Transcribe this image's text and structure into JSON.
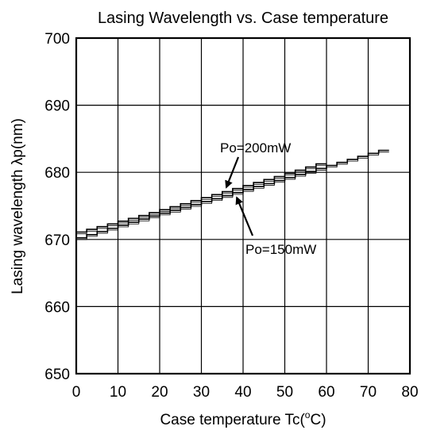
{
  "chart_data": {
    "type": "line",
    "title": "Lasing Wavelength vs. Case temperature",
    "xlabel": "Case temperature Tc(°C)",
    "xlabel_parts": {
      "before": "Case temperature Tc(",
      "sup": "o",
      "after": "C)"
    },
    "ylabel": "Lasing wavelength λp(nm)",
    "xlim": [
      0,
      80
    ],
    "ylim": [
      650,
      700
    ],
    "x_ticks": [
      "0",
      "10",
      "20",
      "30",
      "40",
      "50",
      "60",
      "70",
      "80"
    ],
    "y_ticks": [
      "650",
      "660",
      "670",
      "680",
      "690",
      "700"
    ],
    "grid": true,
    "series": [
      {
        "name": "Po=200mW",
        "x": [
          0,
          10,
          20,
          30,
          40,
          50,
          60
        ],
        "y": [
          670.9,
          672.5,
          674.2,
          676.0,
          677.8,
          679.6,
          681.5
        ]
      },
      {
        "name": "Po=150mW",
        "x": [
          0,
          10,
          20,
          30,
          40,
          50,
          60,
          70,
          75
        ],
        "y": [
          670.0,
          671.9,
          673.7,
          675.4,
          677.2,
          679.0,
          680.8,
          682.6,
          683.5
        ]
      }
    ],
    "annotations": [
      {
        "text": "Po=200mW",
        "series": 0,
        "arrow_to_x": 36
      },
      {
        "text": "Po=150mW",
        "series": 1,
        "arrow_to_x": 38.5
      }
    ]
  }
}
